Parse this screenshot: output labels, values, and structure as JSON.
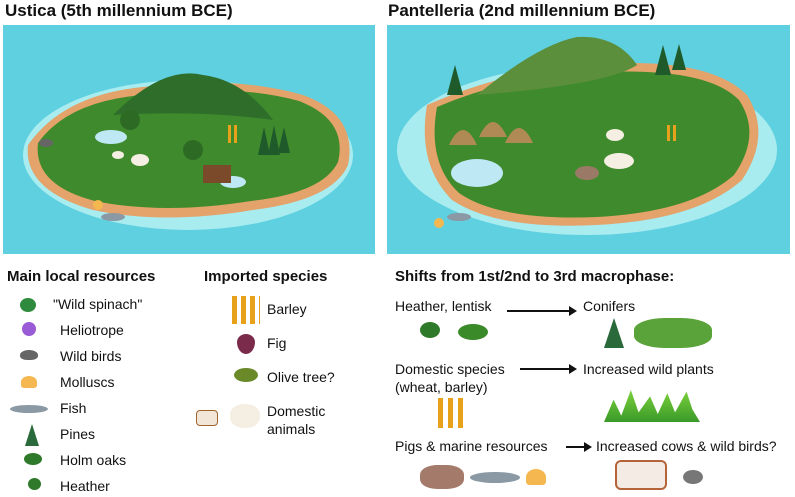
{
  "panels": {
    "left_title": "Ustica (5th millennium BCE)",
    "right_title": "Pantelleria (2nd millennium BCE)",
    "sea_color": "#5fd0e0",
    "land_color": "#3f8a2c",
    "shore_color": "#e3a36a"
  },
  "local_resources": {
    "heading": "Main local resources",
    "items": [
      {
        "label": "\"Wild spinach\"",
        "icon": "spinach-icon"
      },
      {
        "label": "Heliotrope",
        "icon": "heliotrope-icon"
      },
      {
        "label": "Wild birds",
        "icon": "bird-icon"
      },
      {
        "label": "Molluscs",
        "icon": "shell-icon"
      },
      {
        "label": "Fish",
        "icon": "fish-icon"
      },
      {
        "label": "Pines",
        "icon": "pine-icon"
      },
      {
        "label": "Holm oaks",
        "icon": "oak-icon"
      },
      {
        "label": "Heather",
        "icon": "heather-icon"
      }
    ]
  },
  "imported": {
    "heading": "Imported species",
    "items": [
      {
        "label": "Barley",
        "icon": "barley-icon"
      },
      {
        "label": "Fig",
        "icon": "fig-icon"
      },
      {
        "label": "Olive tree?",
        "icon": "olive-icon"
      },
      {
        "label": "Domestic",
        "label2": "animals",
        "icon": "goat-sheep-icon"
      }
    ]
  },
  "shifts": {
    "heading": "Shifts from 1st/2nd to 3rd macrophase:",
    "rows": [
      {
        "from": "Heather, lentisk",
        "to": "Conifers"
      },
      {
        "from": "Domestic species",
        "from2": "(wheat, barley)",
        "to": "Increased wild plants"
      },
      {
        "from": "Pigs & marine resources",
        "to": "Increased cows & wild birds?"
      }
    ]
  }
}
